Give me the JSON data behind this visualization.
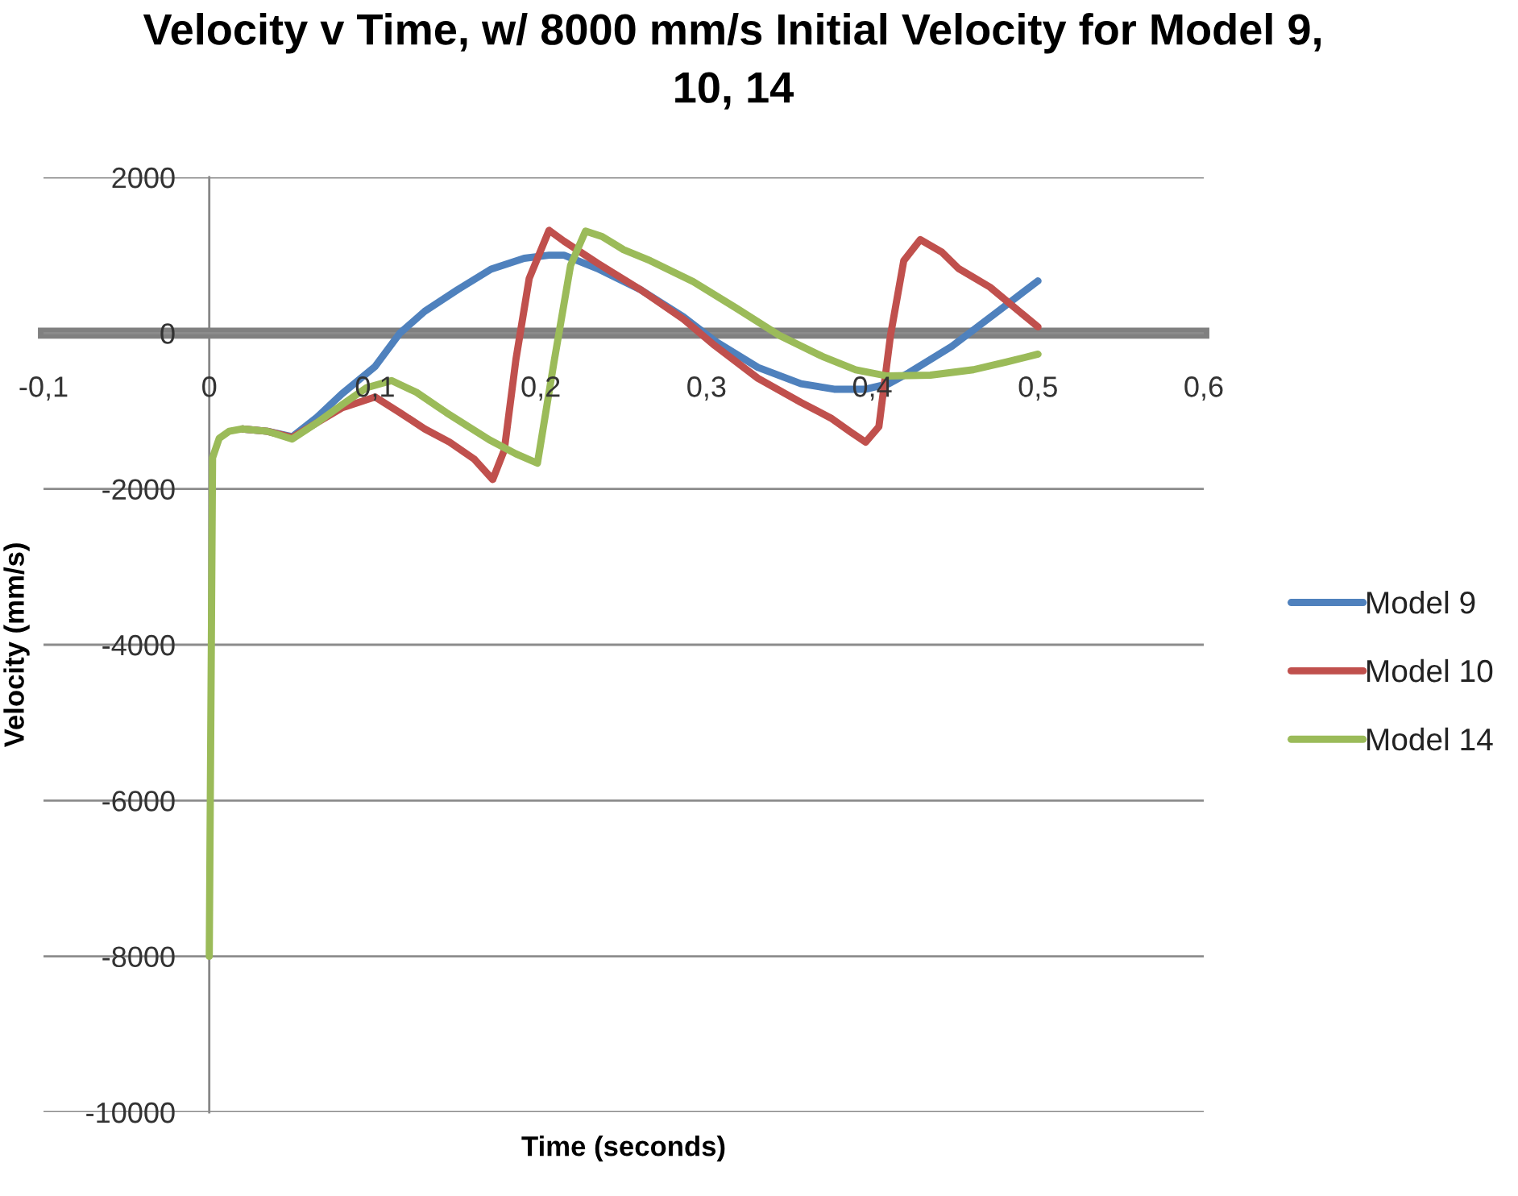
{
  "chart_data": {
    "type": "line",
    "title": "Velocity v Time, w/ 8000 mm/s Initial Velocity for Model 9, 10, 14",
    "xlabel": "Time (seconds)",
    "ylabel": "Velocity (mm/s)",
    "xlim": [
      -0.1,
      0.6
    ],
    "xticks": [
      {
        "value": -0.1,
        "label": "-0,1"
      },
      0,
      {
        "value": 0.1,
        "label": "0,1"
      },
      {
        "value": 0.2,
        "label": "0,2"
      },
      {
        "value": 0.3,
        "label": "0,3"
      },
      {
        "value": 0.4,
        "label": "0,4"
      },
      {
        "value": 0.5,
        "label": "0,5"
      },
      {
        "value": 0.6,
        "label": "0,6"
      }
    ],
    "ylim": [
      -10000,
      2000
    ],
    "yticks": [
      -10000,
      -8000,
      -6000,
      -4000,
      -2000,
      0,
      2000
    ],
    "grid": "y",
    "legend": "right",
    "marker": "none",
    "line_style": "solid",
    "series": [
      {
        "name": "Model 9",
        "color": "#4f81bd",
        "x": [
          0.02,
          0.035,
          0.05,
          0.065,
          0.08,
          0.1,
          0.115,
          0.13,
          0.15,
          0.17,
          0.19,
          0.205,
          0.214,
          0.234,
          0.26,
          0.286,
          0.305,
          0.331,
          0.357,
          0.377,
          0.396,
          0.41,
          0.422,
          0.448,
          0.474,
          0.5
        ],
        "values": [
          -1230,
          -1260,
          -1330,
          -1080,
          -780,
          -430,
          0,
          280,
          560,
          820,
          960,
          1000,
          1000,
          830,
          560,
          210,
          -100,
          -440,
          -650,
          -720,
          -720,
          -650,
          -510,
          -170,
          250,
          670
        ]
      },
      {
        "name": "Model 10",
        "color": "#c0504d",
        "x": [
          0.02,
          0.035,
          0.05,
          0.065,
          0.08,
          0.1,
          0.115,
          0.13,
          0.145,
          0.16,
          0.171,
          0.178,
          0.185,
          0.193,
          0.205,
          0.214,
          0.234,
          0.26,
          0.286,
          0.305,
          0.331,
          0.357,
          0.375,
          0.387,
          0.396,
          0.404,
          0.411,
          0.419,
          0.429,
          0.442,
          0.452,
          0.471,
          0.5
        ],
        "values": [
          -1230,
          -1260,
          -1340,
          -1150,
          -960,
          -820,
          -1020,
          -1230,
          -1400,
          -1620,
          -1880,
          -1500,
          -340,
          700,
          1320,
          1180,
          900,
          560,
          180,
          -160,
          -580,
          -890,
          -1090,
          -1270,
          -1400,
          -1200,
          -30,
          930,
          1200,
          1040,
          830,
          590,
          80
        ]
      },
      {
        "name": "Model 14",
        "color": "#9bbb59",
        "x": [
          0,
          0.002,
          0.006,
          0.012,
          0.02,
          0.035,
          0.05,
          0.065,
          0.08,
          0.095,
          0.11,
          0.125,
          0.143,
          0.169,
          0.185,
          0.198,
          0.208,
          0.218,
          0.227,
          0.237,
          0.25,
          0.266,
          0.292,
          0.318,
          0.344,
          0.37,
          0.39,
          0.409,
          0.435,
          0.461,
          0.481,
          0.5
        ],
        "values": [
          -8000,
          -1600,
          -1350,
          -1260,
          -1230,
          -1260,
          -1360,
          -1150,
          -920,
          -700,
          -610,
          -760,
          -1020,
          -1370,
          -1550,
          -1670,
          -370,
          870,
          1310,
          1240,
          1070,
          930,
          660,
          320,
          -30,
          -300,
          -470,
          -550,
          -540,
          -470,
          -370,
          -270
        ]
      }
    ]
  }
}
